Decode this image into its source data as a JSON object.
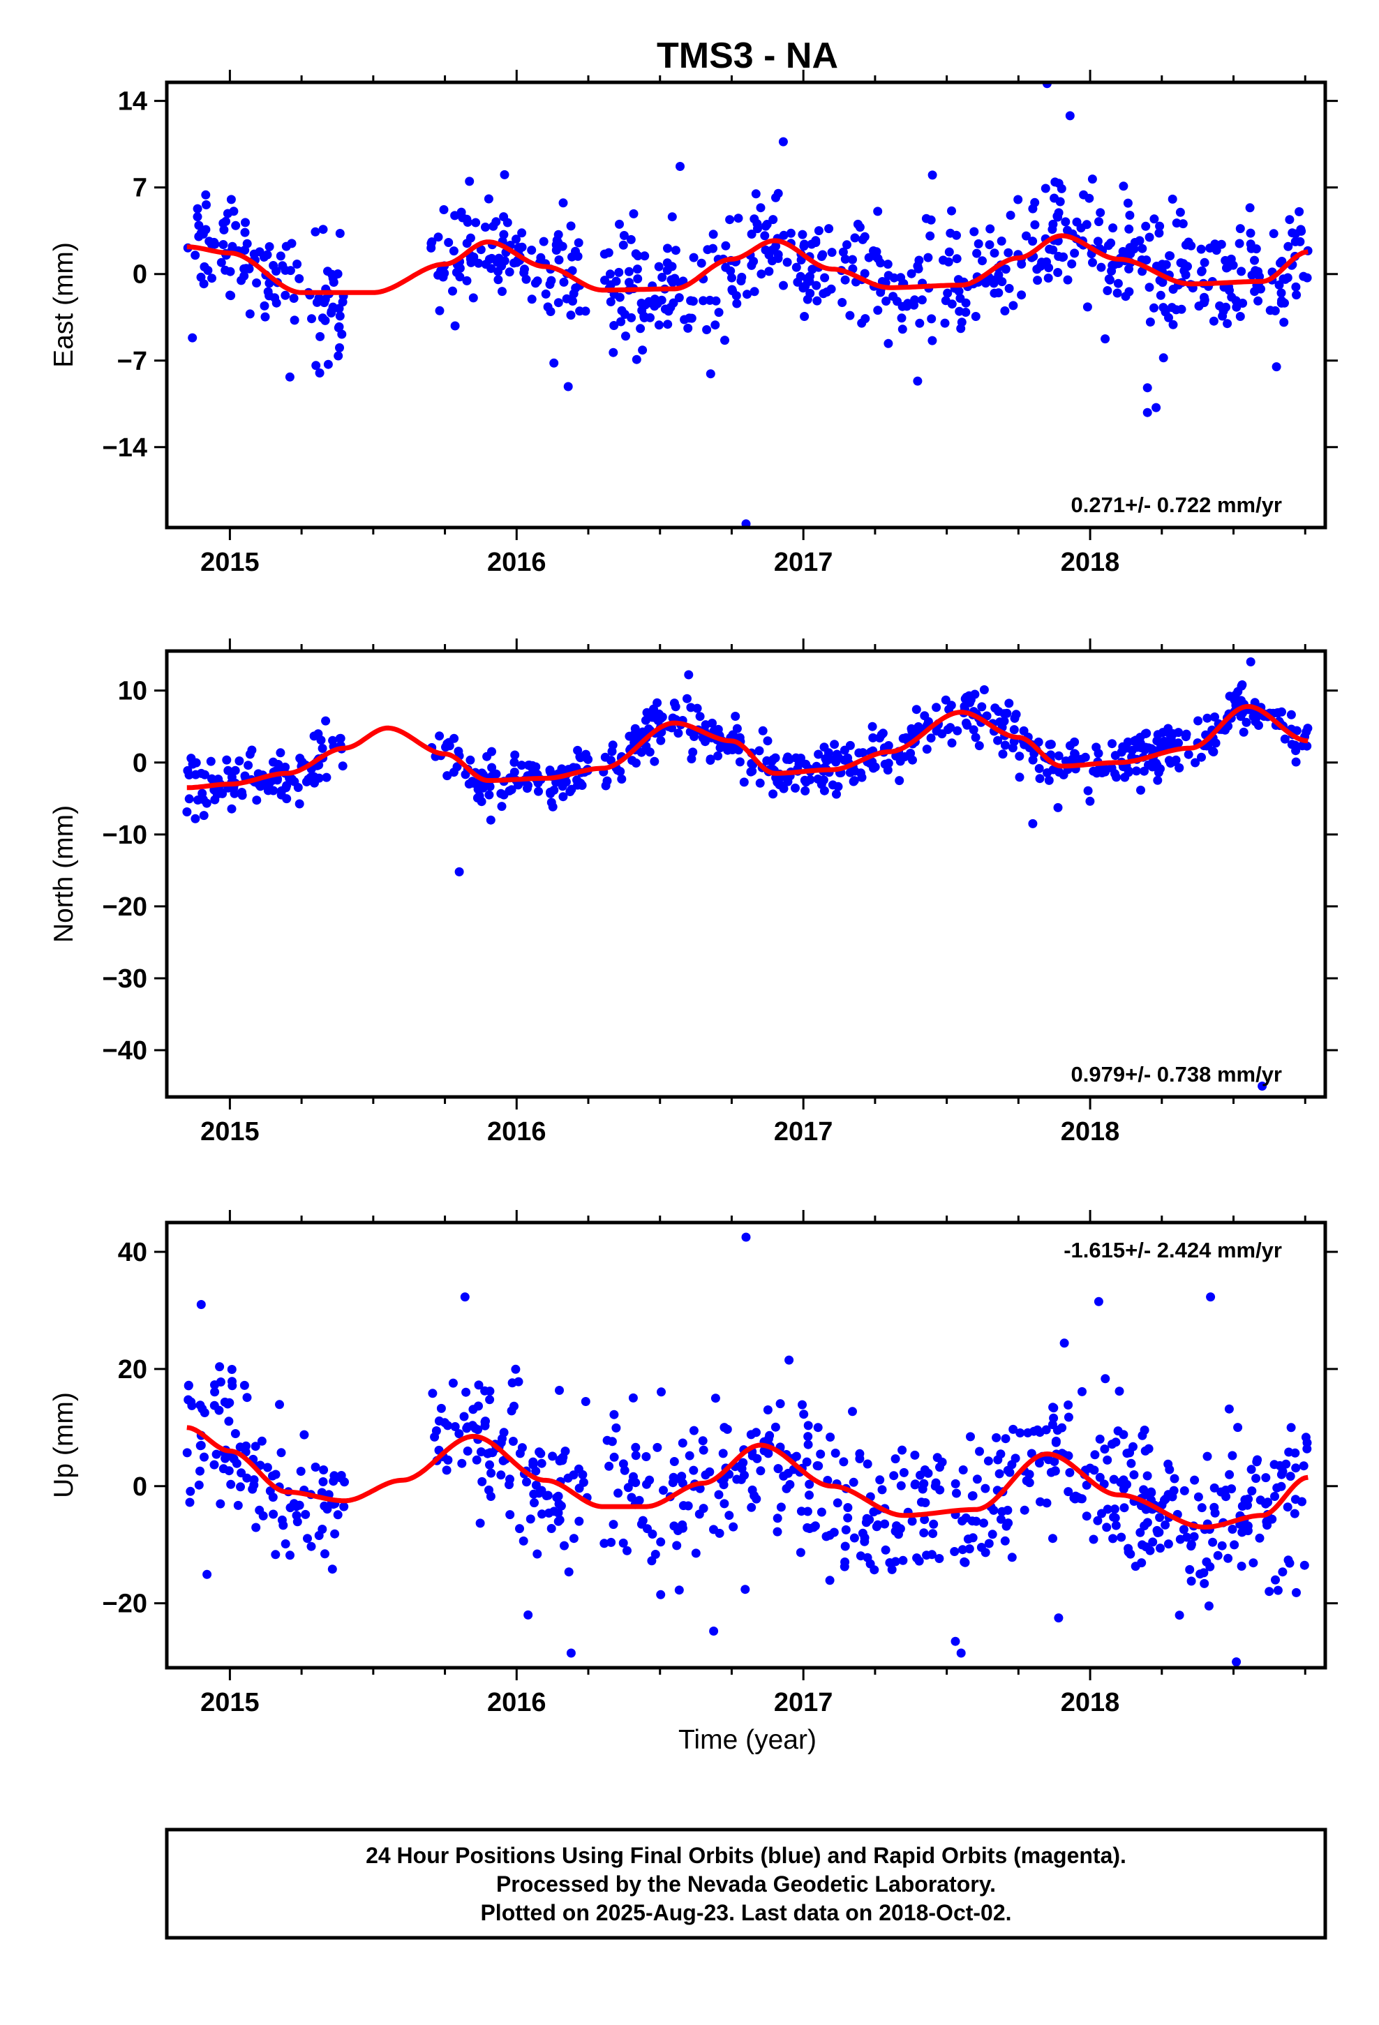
{
  "title": "TMS3 - NA",
  "xlabel": "Time (year)",
  "footer": {
    "line1": "24 Hour Positions Using Final Orbits (blue) and Rapid Orbits (magenta).",
    "line2": "Processed by the Nevada Geodetic Laboratory.",
    "line3": "Plotted on 2025-Aug-23. Last data on 2018-Oct-02."
  },
  "colors": {
    "points": "#0000ff",
    "fit": "#ff0000",
    "frame": "#000000"
  },
  "chart_data": [
    {
      "type": "scatter",
      "ylabel": "East (mm)",
      "rate": "0.271+/- 0.722 mm/yr",
      "rate_position": "bottom-right",
      "xlim": [
        2014.78,
        2018.82
      ],
      "ylim": [
        -20.5,
        15.5
      ],
      "xticks": [
        "2015",
        "2016",
        "2017",
        "2018"
      ],
      "yticks": [
        {
          "v": 14,
          "label": "14"
        },
        {
          "v": 7,
          "label": "7"
        },
        {
          "v": 0,
          "label": "0"
        },
        {
          "v": -7,
          "label": "−7"
        },
        {
          "v": -14,
          "label": "−14"
        }
      ],
      "fit": {
        "name": "model",
        "x": [
          2014.85,
          2015.0,
          2015.25,
          2015.5,
          2015.75,
          2015.9,
          2016.1,
          2016.3,
          2016.55,
          2016.75,
          2016.9,
          2017.1,
          2017.3,
          2017.55,
          2017.75,
          2017.9,
          2018.1,
          2018.35,
          2018.6,
          2018.76
        ],
        "y": [
          2.2,
          1.7,
          -1.5,
          -1.5,
          0.8,
          2.6,
          0.6,
          -1.3,
          -1.2,
          1.2,
          2.7,
          0.4,
          -1.1,
          -0.9,
          1.3,
          3.1,
          1.2,
          -0.8,
          -0.6,
          1.8
        ]
      },
      "points": {
        "count": 750,
        "segments": [
          {
            "from": 2014.85,
            "to": 2015.4
          },
          {
            "from": 2015.7,
            "to": 2016.25
          },
          {
            "from": 2016.3,
            "to": 2018.76
          }
        ],
        "scatter_sd": 2.3,
        "outliers": [
          [
            2016.8,
            -20.2
          ],
          [
            2017.85,
            15.4
          ],
          [
            2017.93,
            12.8
          ],
          [
            2016.93,
            10.7
          ],
          [
            2016.57,
            8.7
          ],
          [
            2017.45,
            8.0
          ],
          [
            2018.2,
            -11.2
          ],
          [
            2018.23,
            -10.8
          ],
          [
            2018.2,
            -9.2
          ],
          [
            2016.18,
            -9.1
          ],
          [
            2015.3,
            -7.4
          ],
          [
            2016.13,
            -7.2
          ],
          [
            2018.65,
            -7.5
          ]
        ]
      }
    },
    {
      "type": "scatter",
      "ylabel": "North (mm)",
      "rate": "0.979+/- 0.738 mm/yr",
      "rate_position": "bottom-right",
      "xlim": [
        2014.78,
        2018.82
      ],
      "ylim": [
        -46.5,
        15.5
      ],
      "xticks": [
        "2015",
        "2016",
        "2017",
        "2018"
      ],
      "yticks": [
        {
          "v": 10,
          "label": "10"
        },
        {
          "v": 0,
          "label": "0"
        },
        {
          "v": -10,
          "label": "−10"
        },
        {
          "v": -20,
          "label": "−20"
        },
        {
          "v": -30,
          "label": "−30"
        },
        {
          "v": -40,
          "label": "−40"
        }
      ],
      "fit": {
        "name": "model",
        "x": [
          2014.85,
          2015.0,
          2015.2,
          2015.4,
          2015.55,
          2015.75,
          2015.9,
          2016.1,
          2016.3,
          2016.55,
          2016.75,
          2016.9,
          2017.1,
          2017.3,
          2017.55,
          2017.75,
          2017.9,
          2018.1,
          2018.35,
          2018.55,
          2018.76
        ],
        "y": [
          -3.5,
          -3.0,
          -1.5,
          2.0,
          4.8,
          1.2,
          -2.5,
          -2.2,
          -0.8,
          5.5,
          3.0,
          -1.5,
          -1.0,
          1.5,
          7.0,
          3.5,
          -0.5,
          0.0,
          2.0,
          7.8,
          3.0
        ]
      },
      "points": {
        "count": 750,
        "segments": [
          {
            "from": 2014.85,
            "to": 2015.4
          },
          {
            "from": 2015.7,
            "to": 2016.25
          },
          {
            "from": 2016.3,
            "to": 2018.76
          }
        ],
        "scatter_sd": 1.8,
        "outliers": [
          [
            2015.8,
            -15.2
          ],
          [
            2018.56,
            14.0
          ],
          [
            2016.6,
            12.2
          ],
          [
            2015.91,
            -8.0
          ],
          [
            2017.8,
            -8.5
          ],
          [
            2018.6,
            -45.0
          ]
        ]
      }
    },
    {
      "type": "scatter",
      "ylabel": "Up (mm)",
      "rate": "-1.615+/- 2.424 mm/yr",
      "rate_position": "top-right",
      "xlim": [
        2014.78,
        2018.82
      ],
      "ylim": [
        -31,
        45
      ],
      "xticks": [
        "2015",
        "2016",
        "2017",
        "2018"
      ],
      "yticks": [
        {
          "v": 40,
          "label": "40"
        },
        {
          "v": 20,
          "label": "20"
        },
        {
          "v": 0,
          "label": "0"
        },
        {
          "v": -20,
          "label": "−20"
        }
      ],
      "fit": {
        "name": "model",
        "x": [
          2014.85,
          2015.0,
          2015.2,
          2015.4,
          2015.6,
          2015.85,
          2016.1,
          2016.3,
          2016.45,
          2016.65,
          2016.85,
          2017.1,
          2017.35,
          2017.6,
          2017.85,
          2018.1,
          2018.4,
          2018.6,
          2018.76
        ],
        "y": [
          10,
          6,
          -1,
          -2.5,
          1,
          8.5,
          1,
          -3.5,
          -3.5,
          0.5,
          7,
          0,
          -5,
          -4,
          5.5,
          -1.5,
          -7,
          -5,
          1.5
        ]
      },
      "points": {
        "count": 750,
        "segments": [
          {
            "from": 2014.85,
            "to": 2015.4
          },
          {
            "from": 2015.7,
            "to": 2016.25
          },
          {
            "from": 2016.3,
            "to": 2018.76
          }
        ],
        "scatter_sd": 6.5,
        "outliers": [
          [
            2016.8,
            42.5
          ],
          [
            2015.82,
            32.3
          ],
          [
            2018.42,
            32.3
          ],
          [
            2018.03,
            31.5
          ],
          [
            2014.9,
            31.0
          ],
          [
            2016.19,
            -28.5
          ],
          [
            2017.55,
            -28.5
          ],
          [
            2018.51,
            -30.0
          ],
          [
            2017.53,
            -26.5
          ],
          [
            2016.04,
            -22.0
          ],
          [
            2017.89,
            -22.5
          ]
        ]
      }
    }
  ]
}
